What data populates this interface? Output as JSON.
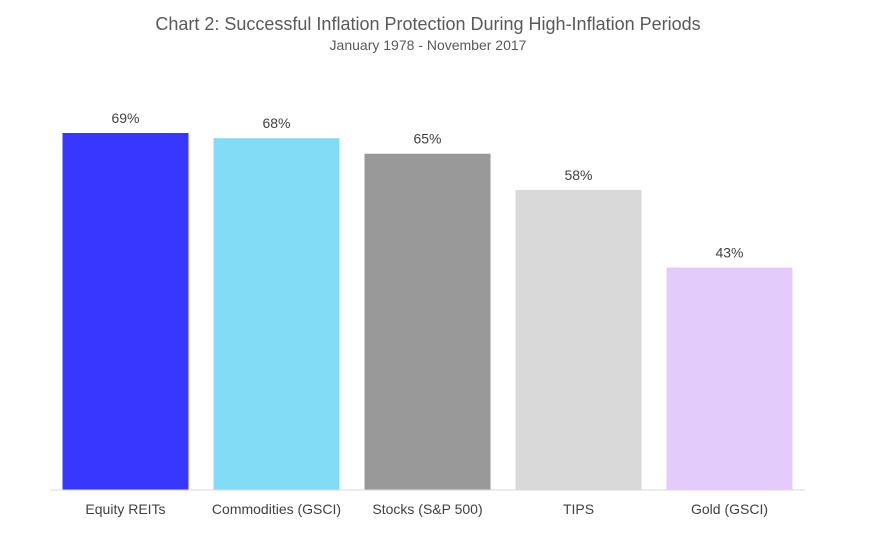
{
  "chart_data": {
    "type": "bar",
    "title": "Chart 2: Successful Inflation Protection During High-Inflation Periods",
    "subtitle": "January 1978 - November 2017",
    "xlabel": "",
    "ylabel": "",
    "unit": "%",
    "categories": [
      "Equity REITs",
      "Commodities (GSCI)",
      "Stocks (S&P 500)",
      "TIPS",
      "Gold (GSCI)"
    ],
    "values": [
      69,
      68,
      65,
      58,
      43
    ],
    "data_labels": [
      "69%",
      "68%",
      "65%",
      "58%",
      "43%"
    ],
    "colors": [
      "#3737ff",
      "#83dcf5",
      "#999999",
      "#d9d9d9",
      "#e3ccfb"
    ],
    "ylim": [
      0,
      69
    ],
    "grid": false,
    "legend": "none"
  }
}
